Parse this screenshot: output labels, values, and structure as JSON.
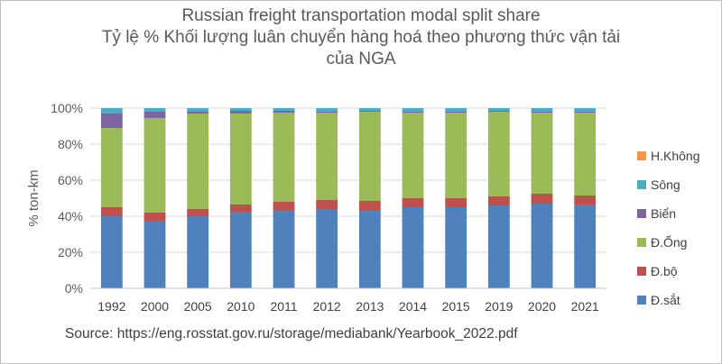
{
  "chart_data": {
    "type": "bar",
    "stacked": true,
    "title": [
      "Russian freight transportation modal split share",
      "Tỷ lệ % Khối lượng luân chuyển hàng hoá theo phương thức vận tải",
      "của NGA"
    ],
    "ylabel": "% ton-km",
    "xlabel": "",
    "ylim": [
      0,
      100
    ],
    "yticks": [
      "0%",
      "20%",
      "40%",
      "60%",
      "80%",
      "100%"
    ],
    "categories": [
      "1992",
      "2000",
      "2005",
      "2010",
      "2011",
      "2012",
      "2013",
      "2014",
      "2015",
      "2019",
      "2020",
      "2021"
    ],
    "series": [
      {
        "name": "Đ.sắt",
        "color": "#4f81bd",
        "values": [
          40,
          37.5,
          40,
          42.5,
          43.5,
          44,
          43.5,
          45,
          45,
          46,
          47,
          46.5
        ]
      },
      {
        "name": "Đ.bộ",
        "color": "#c0504d",
        "values": [
          5,
          4.5,
          4,
          4,
          4.5,
          5,
          5,
          5,
          5,
          5,
          5.5,
          5
        ]
      },
      {
        "name": "Đ.Ống",
        "color": "#9bbb59",
        "values": [
          44,
          52.5,
          53,
          50.5,
          49.5,
          48.5,
          49.5,
          47.5,
          47.5,
          47,
          45,
          46
        ]
      },
      {
        "name": "Biển",
        "color": "#8064a2",
        "values": [
          8,
          3.5,
          1,
          1.5,
          1,
          0.5,
          0.5,
          0.5,
          0.5,
          0.5,
          0.5,
          0.5
        ]
      },
      {
        "name": "Sông",
        "color": "#4bacc6",
        "values": [
          3,
          2,
          2,
          1.5,
          1.5,
          2,
          1.5,
          2,
          2,
          1.5,
          2,
          2
        ]
      },
      {
        "name": "H.Không",
        "color": "#f79646",
        "values": [
          0,
          0,
          0,
          0,
          0,
          0,
          0,
          0,
          0,
          0,
          0,
          0
        ]
      }
    ],
    "grid": true,
    "legend": "right"
  },
  "source": "Source: https://eng.rosstat.gov.ru/storage/mediabank/Yearbook_2022.pdf"
}
